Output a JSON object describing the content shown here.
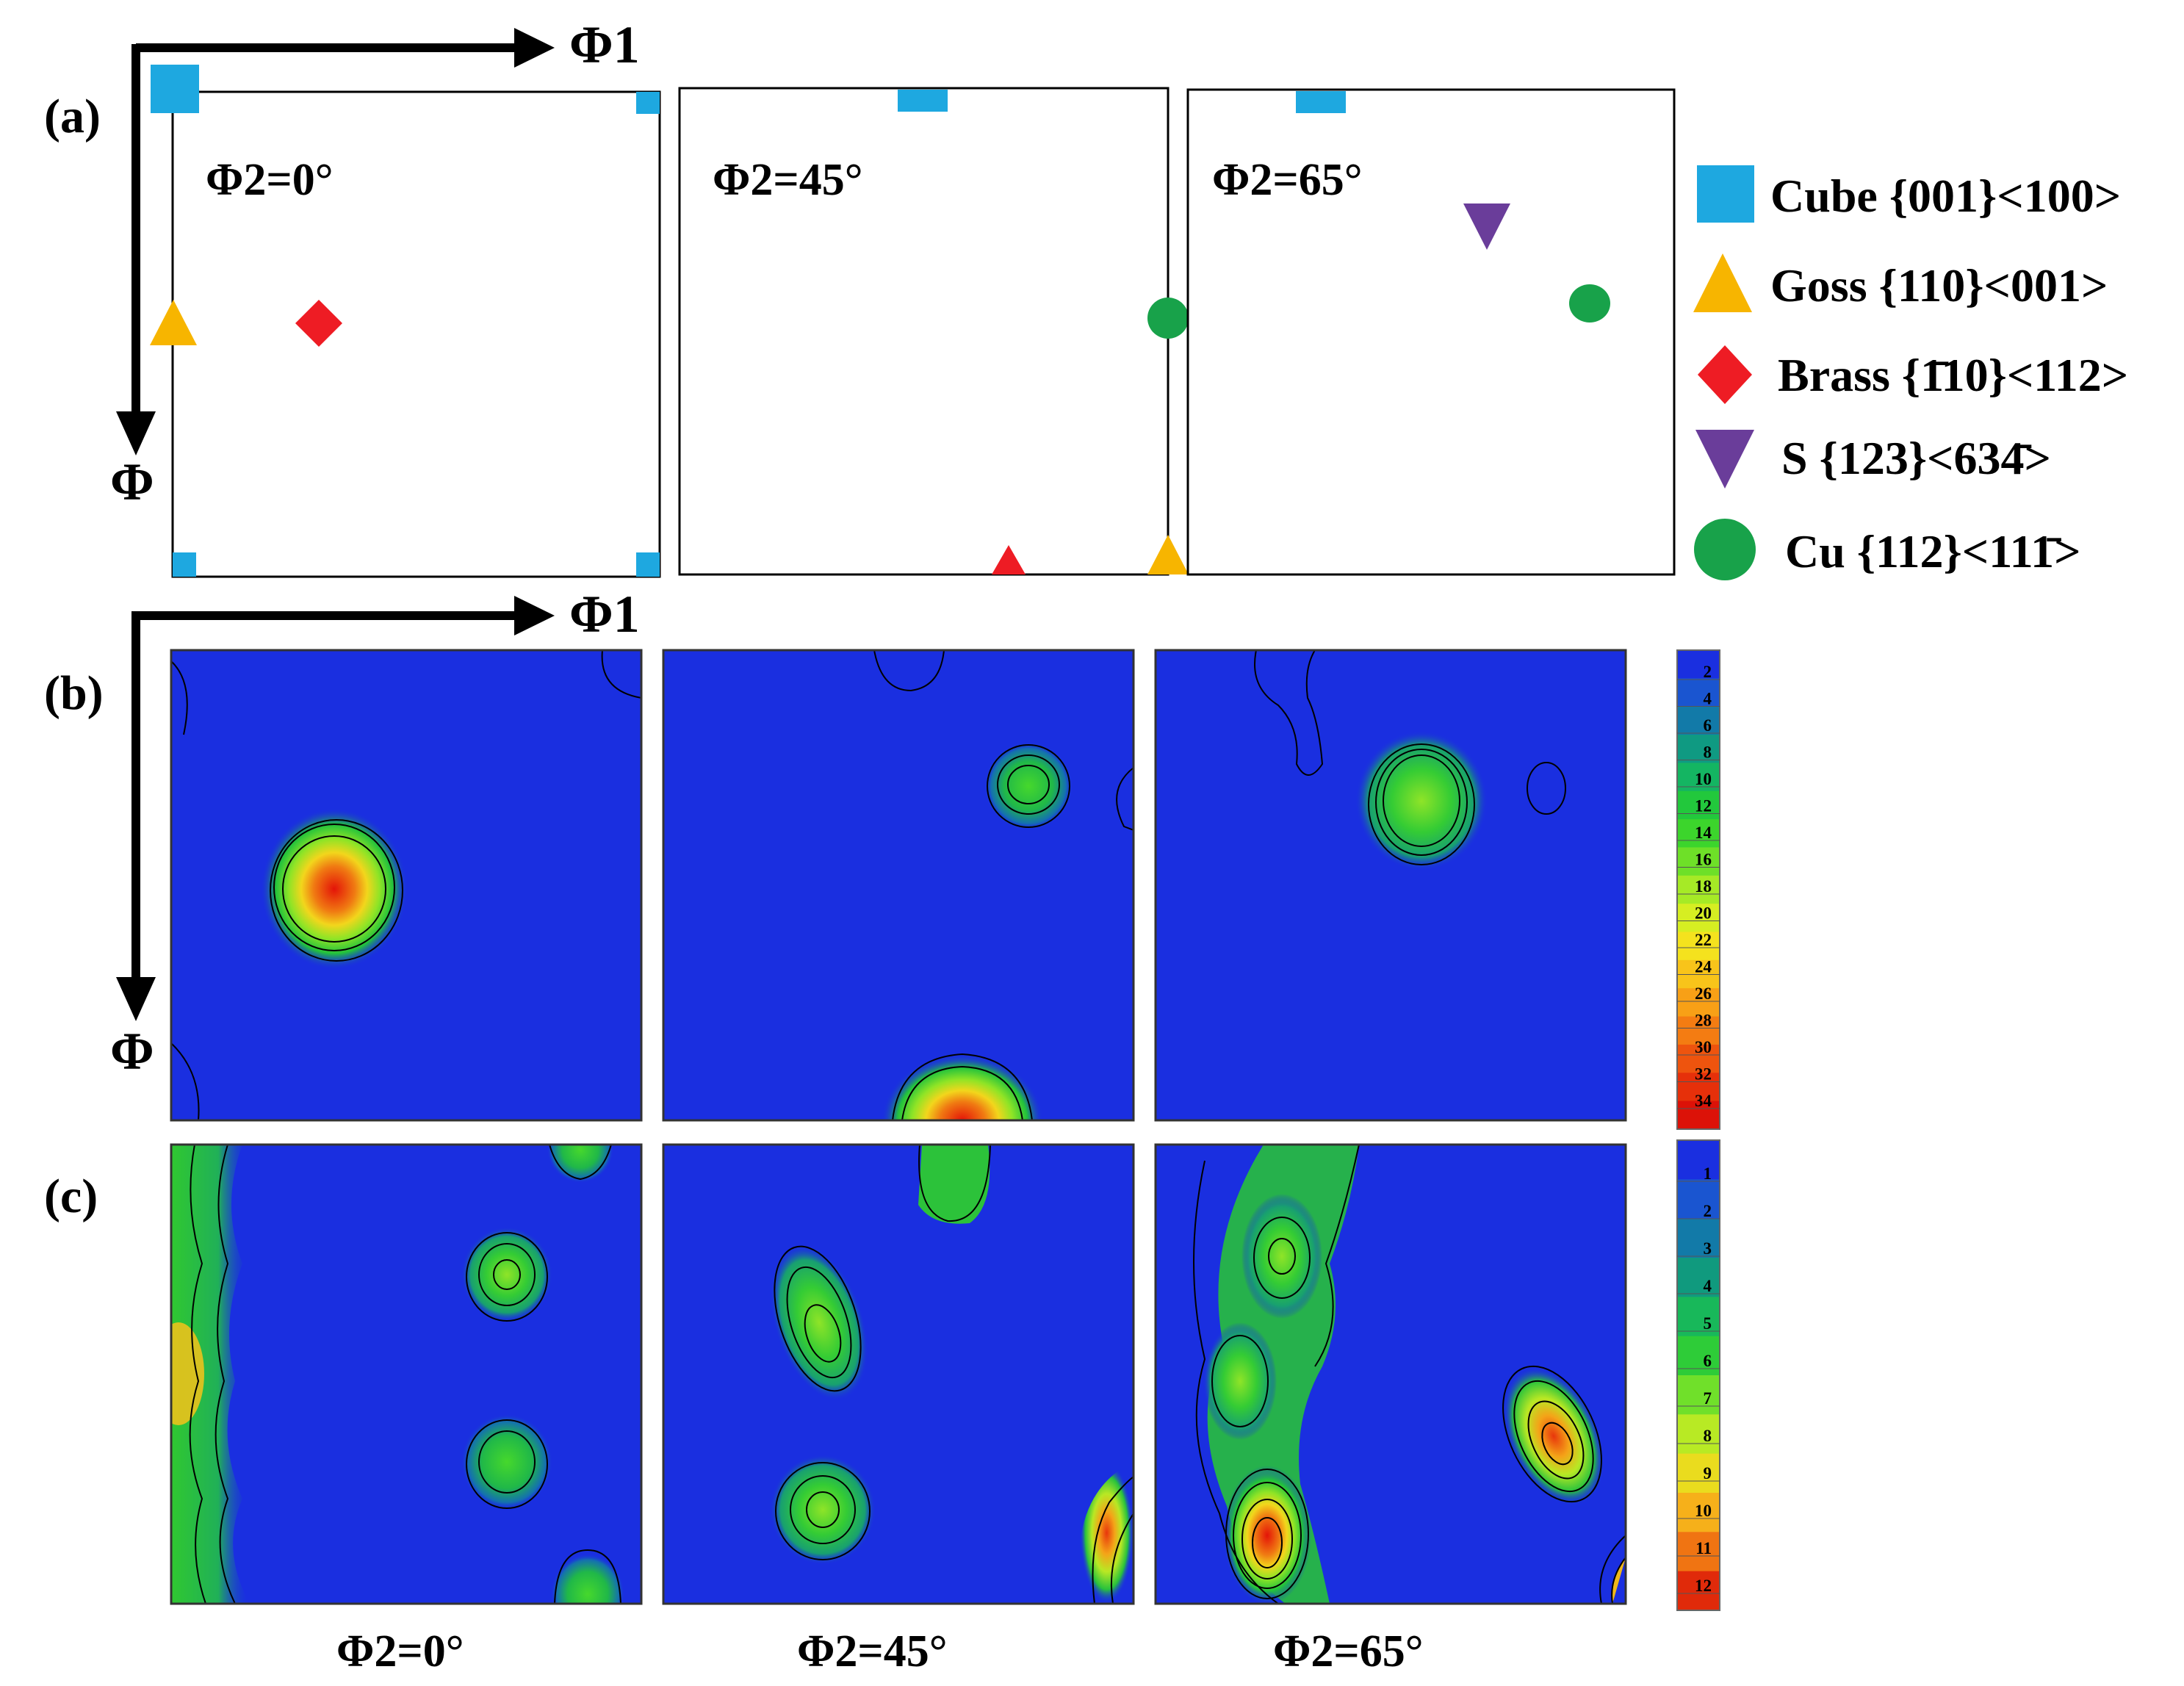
{
  "axes": {
    "horizontal": "Φ1",
    "vertical": "Φ"
  },
  "panel_labels": [
    "(a)",
    "(b)",
    "(c)"
  ],
  "phi2_sections": [
    "Φ2=0°",
    "Φ2=45°",
    "Φ2=65°"
  ],
  "legend": [
    {
      "name": "Cube",
      "index": "{001}<100>",
      "shape": "square-marker",
      "color": "#1EA8E0"
    },
    {
      "name": "Goss",
      "index": "{110}<001>",
      "shape": "triangle-up-marker",
      "color": "#F7B500"
    },
    {
      "name": "Brass",
      "index": "{1̄10}<112>",
      "shape": "diamond-marker",
      "color": "#EE1C24"
    },
    {
      "name": "S",
      "index": "{123}<634̄>",
      "shape": "triangle-down-marker",
      "color": "#6A3D9A"
    },
    {
      "name": "Cu",
      "index": "{112}<111̄>",
      "shape": "circle-marker",
      "color": "#18A24A"
    }
  ],
  "colorbar_b": {
    "ticks": [
      "2",
      "4",
      "6",
      "8",
      "10",
      "12",
      "14",
      "16",
      "18",
      "20",
      "22",
      "24",
      "26",
      "28",
      "30",
      "32",
      "34"
    ],
    "colors": [
      "#1a2fe0",
      "#1a55d0",
      "#127aa8",
      "#0f9a82",
      "#14b562",
      "#22c83c",
      "#3cd52c",
      "#6ee028",
      "#a6ea26",
      "#d6ee22",
      "#f4e21e",
      "#f8c41a",
      "#f8a016",
      "#f47c12",
      "#ee540e",
      "#e6300a",
      "#dc1208"
    ]
  },
  "colorbar_c": {
    "ticks": [
      "1",
      "2",
      "3",
      "4",
      "5",
      "6",
      "7",
      "8",
      "9",
      "10",
      "11",
      "12"
    ],
    "colors": [
      "#1a2fe0",
      "#1a55d0",
      "#127aa8",
      "#109a7e",
      "#18b85a",
      "#2ecc38",
      "#70e02a",
      "#b8ea24",
      "#eadc1e",
      "#f6b01a",
      "#f07412",
      "#e02a0a"
    ]
  }
}
